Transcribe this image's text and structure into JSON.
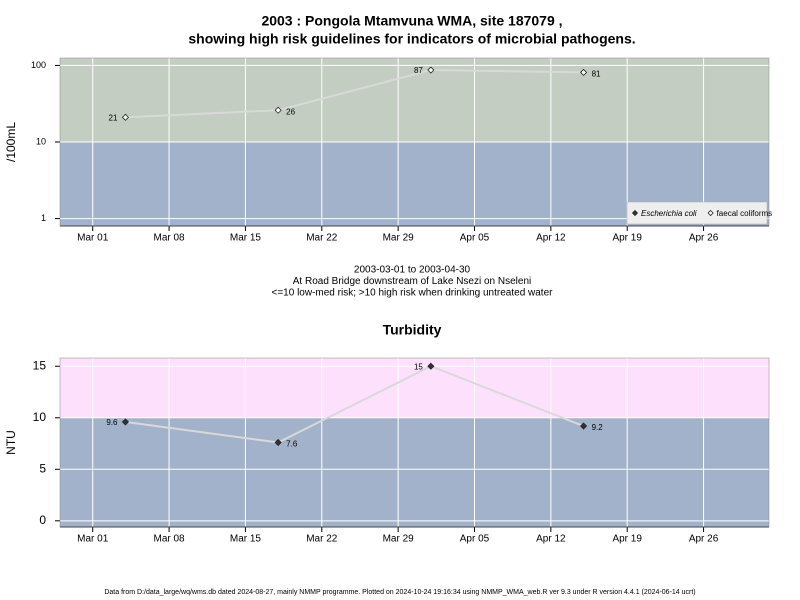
{
  "chart_data": [
    {
      "type": "line",
      "title": [
        "2003 : Pongola Mtamvuna WMA, site 187079 ,",
        "showing high risk guidelines for indicators of microbial pathogens."
      ],
      "ylabel": "/100mL",
      "log_y": true,
      "notes": [
        "2003-03-01 to 2003-04-30",
        "At Road Bridge downstream of Lake Nsezi on Nseleni",
        "<=10 low-med risk; >10 high risk when drinking untreated water"
      ],
      "x": [
        "03-04",
        "03-18",
        "04-01",
        "04-15"
      ],
      "xlim": [
        "02-26",
        "05-02"
      ],
      "xticks": [
        {
          "value": "03-01",
          "label": "Mar 01"
        },
        {
          "value": "03-08",
          "label": "Mar 08"
        },
        {
          "value": "03-15",
          "label": "Mar 15"
        },
        {
          "value": "03-22",
          "label": "Mar 22"
        },
        {
          "value": "03-29",
          "label": "Mar 29"
        },
        {
          "value": "04-05",
          "label": "Apr 05"
        },
        {
          "value": "04-12",
          "label": "Apr 12"
        },
        {
          "value": "04-19",
          "label": "Apr 19"
        },
        {
          "value": "04-26",
          "label": "Apr 26"
        }
      ],
      "ylim": [
        0.8,
        125
      ],
      "yticks": [
        1,
        10,
        100
      ],
      "threshold": 10,
      "band_colors": {
        "above": "#c3cdc1",
        "below": "#a3b2cb"
      },
      "legend": "bottom-right",
      "series": [
        {
          "name": "Escherichia coli",
          "marker": "filled-diamond",
          "color": "#d9d9d9",
          "values": [
            null,
            null,
            null,
            null
          ]
        },
        {
          "name": "faecal coliforms",
          "marker": "open-diamond",
          "color": "#d9d9d9",
          "values": [
            21,
            26,
            87,
            81
          ]
        }
      ]
    },
    {
      "type": "line",
      "title": [
        "Turbidity"
      ],
      "ylabel": "NTU",
      "log_y": false,
      "x": [
        "03-04",
        "03-18",
        "04-01",
        "04-15"
      ],
      "xlim": [
        "02-26",
        "05-02"
      ],
      "xticks": [
        {
          "value": "03-01",
          "label": "Mar 01"
        },
        {
          "value": "03-08",
          "label": "Mar 08"
        },
        {
          "value": "03-15",
          "label": "Mar 15"
        },
        {
          "value": "03-22",
          "label": "Mar 22"
        },
        {
          "value": "03-29",
          "label": "Mar 29"
        },
        {
          "value": "04-05",
          "label": "Apr 05"
        },
        {
          "value": "04-12",
          "label": "Apr 12"
        },
        {
          "value": "04-19",
          "label": "Apr 19"
        },
        {
          "value": "04-26",
          "label": "Apr 26"
        }
      ],
      "ylim": [
        -0.6,
        15.8
      ],
      "yticks": [
        0,
        5,
        10,
        15
      ],
      "threshold": 10,
      "band_colors": {
        "above": "#fde0fc",
        "below": "#a3b2cb"
      },
      "series": [
        {
          "name": "Turbidity",
          "marker": "filled-diamond",
          "color": "#d9d9d9",
          "values": [
            9.6,
            7.6,
            15,
            9.2
          ]
        }
      ]
    }
  ],
  "footer": "Data from D:/data_large/wq/wms.db dated 2024-08-27, mainly NMMP programme. Plotted on 2024-10-24 19:16:34 using NMMP_WMA_web.R ver 9.3 under R version 4.4.1 (2024-06-14 ucrt)"
}
